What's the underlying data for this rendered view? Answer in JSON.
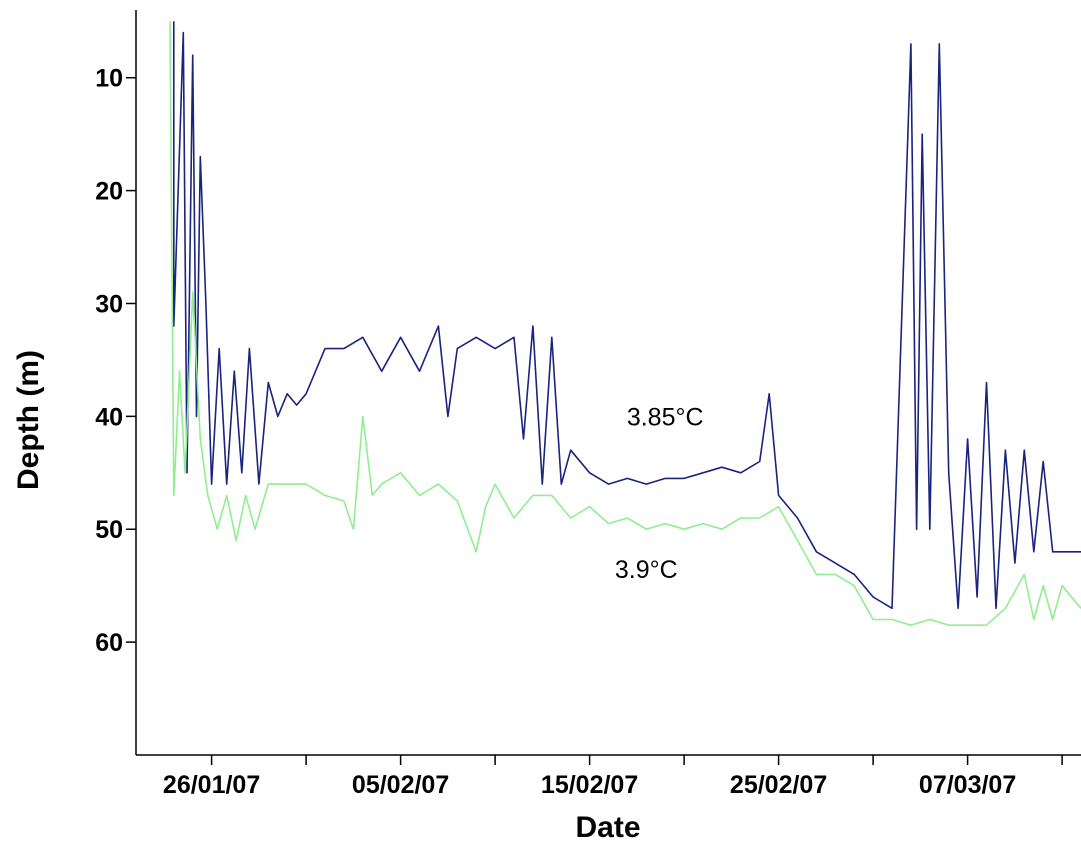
{
  "chart_data": {
    "type": "line",
    "xlabel": "Date",
    "ylabel": "Depth (m)",
    "x_unit": "date",
    "y_inverted": true,
    "xlim": [
      "2007-01-22",
      "2007-03-13"
    ],
    "ylim": [
      4,
      70
    ],
    "x_ticks": [
      {
        "date": "2007-01-26",
        "label": "26/01/07"
      },
      {
        "date": "2007-02-05",
        "label": "05/02/07"
      },
      {
        "date": "2007-02-15",
        "label": "15/02/07"
      },
      {
        "date": "2007-02-25",
        "label": "25/02/07"
      },
      {
        "date": "2007-03-07",
        "label": "07/03/07"
      }
    ],
    "x_minor_ticks": [
      "2007-01-31",
      "2007-02-10",
      "2007-02-20",
      "2007-03-02",
      "2007-03-12"
    ],
    "y_ticks": [
      {
        "value": 10,
        "label": "10"
      },
      {
        "value": 20,
        "label": "20"
      },
      {
        "value": 30,
        "label": "30"
      },
      {
        "value": 40,
        "label": "40"
      },
      {
        "value": 50,
        "label": "50"
      },
      {
        "value": 60,
        "label": "60"
      }
    ],
    "annotations": [
      {
        "text": "3.85°C",
        "date": "2007-02-19",
        "depth": 40
      },
      {
        "text": "3.9°C",
        "date": "2007-02-18",
        "depth": 53.5
      }
    ],
    "series": [
      {
        "color": "#1a237e",
        "points": [
          [
            "2007-01-24",
            5
          ],
          [
            "2007-01-24",
            32
          ],
          [
            "2007-01-24.5",
            6
          ],
          [
            "2007-01-24.7",
            45
          ],
          [
            "2007-01-25",
            8
          ],
          [
            "2007-01-25.2",
            40
          ],
          [
            "2007-01-25.4",
            17
          ],
          [
            "2007-01-25.7",
            30
          ],
          [
            "2007-01-26",
            46
          ],
          [
            "2007-01-26.4",
            34
          ],
          [
            "2007-01-26.8",
            46
          ],
          [
            "2007-01-27.2",
            36
          ],
          [
            "2007-01-27.6",
            45
          ],
          [
            "2007-01-28",
            34
          ],
          [
            "2007-01-28.5",
            46
          ],
          [
            "2007-01-29",
            37
          ],
          [
            "2007-01-29.5",
            40
          ],
          [
            "2007-01-30",
            38
          ],
          [
            "2007-01-30.5",
            39
          ],
          [
            "2007-01-31",
            38
          ],
          [
            "2007-02-01",
            34
          ],
          [
            "2007-02-02",
            34
          ],
          [
            "2007-02-03",
            33
          ],
          [
            "2007-02-04",
            36
          ],
          [
            "2007-02-05",
            33
          ],
          [
            "2007-02-06",
            36
          ],
          [
            "2007-02-07",
            32
          ],
          [
            "2007-02-07.5",
            40
          ],
          [
            "2007-02-08",
            34
          ],
          [
            "2007-02-09",
            33
          ],
          [
            "2007-02-10",
            34
          ],
          [
            "2007-02-11",
            33
          ],
          [
            "2007-02-11.5",
            42
          ],
          [
            "2007-02-12",
            32
          ],
          [
            "2007-02-12.5",
            46
          ],
          [
            "2007-02-13",
            33
          ],
          [
            "2007-02-13.5",
            46
          ],
          [
            "2007-02-14",
            43
          ],
          [
            "2007-02-15",
            45
          ],
          [
            "2007-02-16",
            46
          ],
          [
            "2007-02-17",
            45.5
          ],
          [
            "2007-02-18",
            46
          ],
          [
            "2007-02-19",
            45.5
          ],
          [
            "2007-02-20",
            45.5
          ],
          [
            "2007-02-21",
            45
          ],
          [
            "2007-02-22",
            44.5
          ],
          [
            "2007-02-23",
            45
          ],
          [
            "2007-02-24",
            44
          ],
          [
            "2007-02-24.5",
            38
          ],
          [
            "2007-02-25",
            47
          ],
          [
            "2007-02-26",
            49
          ],
          [
            "2007-02-27",
            52
          ],
          [
            "2007-02-28",
            53
          ],
          [
            "2007-03-01",
            54
          ],
          [
            "2007-03-02",
            56
          ],
          [
            "2007-03-03",
            57
          ],
          [
            "2007-03-04",
            7
          ],
          [
            "2007-03-04.3",
            50
          ],
          [
            "2007-03-04.6",
            15
          ],
          [
            "2007-03-05",
            50
          ],
          [
            "2007-03-05.5",
            7
          ],
          [
            "2007-03-06",
            45
          ],
          [
            "2007-03-06.5",
            57
          ],
          [
            "2007-03-07",
            42
          ],
          [
            "2007-03-07.5",
            56
          ],
          [
            "2007-03-08",
            37
          ],
          [
            "2007-03-08.5",
            57
          ],
          [
            "2007-03-09",
            43
          ],
          [
            "2007-03-09.5",
            53
          ],
          [
            "2007-03-10",
            43
          ],
          [
            "2007-03-10.5",
            52
          ],
          [
            "2007-03-11",
            44
          ],
          [
            "2007-03-11.5",
            52
          ],
          [
            "2007-03-12",
            52
          ],
          [
            "2007-03-13",
            52
          ]
        ]
      },
      {
        "color": "#90ee90",
        "points": [
          [
            "2007-01-23.8",
            5
          ],
          [
            "2007-01-24",
            47
          ],
          [
            "2007-01-24.3",
            36
          ],
          [
            "2007-01-24.6",
            45
          ],
          [
            "2007-01-25",
            29
          ],
          [
            "2007-01-25.4",
            42
          ],
          [
            "2007-01-25.8",
            47
          ],
          [
            "2007-01-26.3",
            50
          ],
          [
            "2007-01-26.8",
            47
          ],
          [
            "2007-01-27.3",
            51
          ],
          [
            "2007-01-27.8",
            47
          ],
          [
            "2007-01-28.3",
            50
          ],
          [
            "2007-01-29",
            46
          ],
          [
            "2007-01-30",
            46
          ],
          [
            "2007-01-31",
            46
          ],
          [
            "2007-02-01",
            47
          ],
          [
            "2007-02-02",
            47.5
          ],
          [
            "2007-02-02.5",
            50
          ],
          [
            "2007-02-03",
            40
          ],
          [
            "2007-02-03.5",
            47
          ],
          [
            "2007-02-04",
            46
          ],
          [
            "2007-02-05",
            45
          ],
          [
            "2007-02-06",
            47
          ],
          [
            "2007-02-07",
            46
          ],
          [
            "2007-02-08",
            47.5
          ],
          [
            "2007-02-09",
            52
          ],
          [
            "2007-02-09.5",
            48
          ],
          [
            "2007-02-10",
            46
          ],
          [
            "2007-02-11",
            49
          ],
          [
            "2007-02-12",
            47
          ],
          [
            "2007-02-13",
            47
          ],
          [
            "2007-02-14",
            49
          ],
          [
            "2007-02-15",
            48
          ],
          [
            "2007-02-16",
            49.5
          ],
          [
            "2007-02-17",
            49
          ],
          [
            "2007-02-18",
            50
          ],
          [
            "2007-02-19",
            49.5
          ],
          [
            "2007-02-20",
            50
          ],
          [
            "2007-02-21",
            49.5
          ],
          [
            "2007-02-22",
            50
          ],
          [
            "2007-02-23",
            49
          ],
          [
            "2007-02-24",
            49
          ],
          [
            "2007-02-25",
            48
          ],
          [
            "2007-02-26",
            51
          ],
          [
            "2007-02-27",
            54
          ],
          [
            "2007-02-28",
            54
          ],
          [
            "2007-03-01",
            55
          ],
          [
            "2007-03-02",
            58
          ],
          [
            "2007-03-03",
            58
          ],
          [
            "2007-03-04",
            58.5
          ],
          [
            "2007-03-05",
            58
          ],
          [
            "2007-03-06",
            58.5
          ],
          [
            "2007-03-07",
            58.5
          ],
          [
            "2007-03-08",
            58.5
          ],
          [
            "2007-03-09",
            57
          ],
          [
            "2007-03-10",
            54
          ],
          [
            "2007-03-10.5",
            58
          ],
          [
            "2007-03-11",
            55
          ],
          [
            "2007-03-11.5",
            58
          ],
          [
            "2007-03-12",
            55
          ],
          [
            "2007-03-13",
            57
          ]
        ]
      }
    ]
  }
}
